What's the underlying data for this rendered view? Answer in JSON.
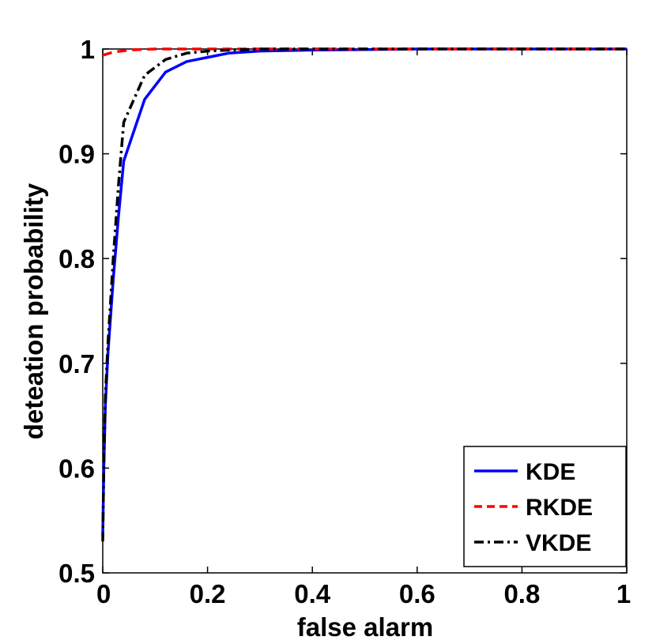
{
  "chart_data": {
    "type": "line",
    "xlabel": "false alarm",
    "ylabel": "deteation probability",
    "xlim": [
      0,
      1
    ],
    "ylim": [
      0.5,
      1
    ],
    "x_ticks": [
      "0",
      "0.2",
      "0.4",
      "0.6",
      "0.8",
      "1"
    ],
    "y_ticks": [
      "0.5",
      "0.6",
      "0.7",
      "0.8",
      "0.9",
      "1"
    ],
    "grid": false,
    "legend_position": "bottom-right",
    "series": [
      {
        "name": "KDE",
        "color": "#0000ff",
        "line_style": "solid",
        "x": [
          0,
          0.002,
          0.005,
          0.01,
          0.02,
          0.03,
          0.04,
          0.08,
          0.12,
          0.16,
          0.2,
          0.24,
          0.3,
          0.4,
          0.6,
          0.8,
          1
        ],
        "y": [
          0.535,
          0.6,
          0.66,
          0.71,
          0.78,
          0.84,
          0.893,
          0.952,
          0.978,
          0.988,
          0.992,
          0.996,
          0.998,
          0.999,
          1,
          1,
          1
        ]
      },
      {
        "name": "RKDE",
        "color": "#ff0000",
        "line_style": "dashed",
        "x": [
          0,
          0.02,
          0.05,
          0.1,
          0.2,
          0.4,
          0.6,
          0.8,
          1
        ],
        "y": [
          0.994,
          0.997,
          0.999,
          1,
          1,
          1,
          1,
          1,
          1
        ]
      },
      {
        "name": "VKDE",
        "color": "#000000",
        "line_style": "dashdot",
        "x": [
          0,
          0.002,
          0.005,
          0.01,
          0.02,
          0.03,
          0.04,
          0.08,
          0.12,
          0.16,
          0.2,
          0.24,
          0.3,
          0.4,
          0.6,
          0.8,
          1
        ],
        "y": [
          0.53,
          0.6,
          0.67,
          0.72,
          0.8,
          0.87,
          0.93,
          0.975,
          0.99,
          0.996,
          0.998,
          0.999,
          1,
          1,
          1,
          1,
          1
        ]
      }
    ]
  }
}
